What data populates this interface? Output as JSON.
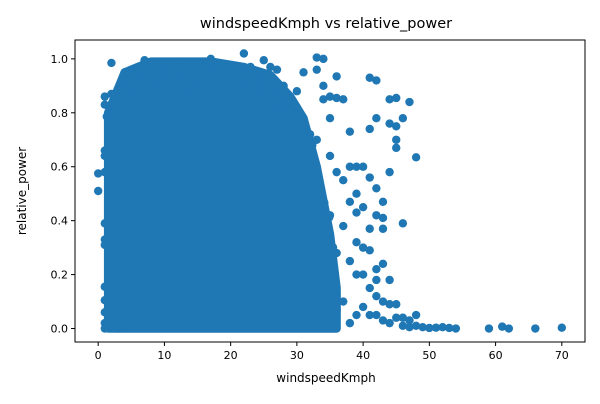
{
  "chart_data": {
    "type": "scatter",
    "title": "windspeedKmph vs relative_power",
    "xlabel": "windspeedKmph",
    "ylabel": "relative_power",
    "xlim": [
      -3.5,
      73.5
    ],
    "ylim": [
      -0.05,
      1.07
    ],
    "x_ticks": [
      0,
      10,
      20,
      30,
      40,
      50,
      60,
      70
    ],
    "y_ticks": [
      0.0,
      0.2,
      0.4,
      0.6,
      0.8,
      1.0
    ],
    "x_tick_labels": [
      "0",
      "10",
      "20",
      "30",
      "40",
      "50",
      "60",
      "70"
    ],
    "y_tick_labels": [
      "0.0",
      "0.2",
      "0.4",
      "0.6",
      "0.8",
      "1.0"
    ],
    "grid": false,
    "legend": "none",
    "marker_color": "#1f77b4",
    "points": [
      [
        0,
        0.51
      ],
      [
        0,
        0.575
      ],
      [
        1,
        0.58
      ],
      [
        1,
        0.83
      ],
      [
        1,
        0.86
      ],
      [
        1,
        0.66
      ],
      [
        1,
        0.64
      ],
      [
        1,
        0.39
      ],
      [
        1,
        0.33
      ],
      [
        1,
        0.31
      ],
      [
        1,
        0.155
      ],
      [
        1,
        0.105
      ],
      [
        1,
        0.06
      ],
      [
        1,
        0.02
      ],
      [
        1,
        0.0
      ],
      [
        2,
        0.985
      ],
      [
        2,
        0.87
      ],
      [
        2,
        0.75
      ],
      [
        2,
        0.55
      ],
      [
        2,
        0.49
      ],
      [
        2,
        0.3
      ],
      [
        2,
        0.1
      ],
      [
        2,
        0.01
      ],
      [
        3,
        0.89
      ],
      [
        3,
        0.7
      ],
      [
        3,
        0.45
      ],
      [
        3,
        0.2
      ],
      [
        3,
        0.0
      ],
      [
        4,
        0.95
      ],
      [
        4,
        0.6
      ],
      [
        4,
        0.3
      ],
      [
        4,
        0.05
      ],
      [
        5,
        0.9
      ],
      [
        5,
        0.4
      ],
      [
        5,
        0.1
      ],
      [
        6,
        0.96
      ],
      [
        6,
        0.8
      ],
      [
        6,
        0.2
      ],
      [
        7,
        0.995
      ],
      [
        7,
        0.7
      ],
      [
        8,
        0.98
      ],
      [
        8,
        0.5
      ],
      [
        9,
        0.96
      ],
      [
        9,
        0.3
      ],
      [
        10,
        0.985
      ],
      [
        10,
        0.85
      ],
      [
        11,
        0.97
      ],
      [
        11,
        0.1
      ],
      [
        12,
        0.985
      ],
      [
        12,
        0.6
      ],
      [
        13,
        0.96
      ],
      [
        13,
        0.75
      ],
      [
        14,
        0.975
      ],
      [
        14,
        0.4
      ],
      [
        15,
        0.95
      ],
      [
        15,
        0.2
      ],
      [
        16,
        0.97
      ],
      [
        16,
        0.65
      ],
      [
        17,
        1.0
      ],
      [
        17,
        0.985
      ],
      [
        17,
        0.8
      ],
      [
        18,
        0.97
      ],
      [
        18,
        0.3
      ],
      [
        19,
        0.98
      ],
      [
        19,
        0.5
      ],
      [
        20,
        0.96
      ],
      [
        20,
        0.7
      ],
      [
        21,
        0.97
      ],
      [
        21,
        0.9
      ],
      [
        22,
        1.02
      ],
      [
        22,
        0.6
      ],
      [
        23,
        0.97
      ],
      [
        23,
        0.85
      ],
      [
        24,
        0.95
      ],
      [
        24,
        0.4
      ],
      [
        25,
        0.995
      ],
      [
        25,
        0.88
      ],
      [
        26,
        0.97
      ],
      [
        26,
        0.5
      ],
      [
        27,
        0.96
      ],
      [
        27,
        0.85
      ],
      [
        28,
        0.9
      ],
      [
        28,
        0.3
      ],
      [
        29,
        0.85
      ],
      [
        29,
        0.7
      ],
      [
        30,
        0.88
      ],
      [
        30,
        0.5
      ],
      [
        31,
        0.95
      ],
      [
        31,
        0.6
      ],
      [
        32,
        0.72
      ],
      [
        32,
        0.5
      ],
      [
        33,
        1.005
      ],
      [
        33,
        0.96
      ],
      [
        33,
        0.7
      ],
      [
        33,
        0.25
      ],
      [
        34,
        1.0
      ],
      [
        34,
        0.9
      ],
      [
        34,
        0.85
      ],
      [
        34,
        0.45
      ],
      [
        34,
        0.2
      ],
      [
        35,
        0.86
      ],
      [
        35,
        0.78
      ],
      [
        35,
        0.64
      ],
      [
        35,
        0.42
      ],
      [
        35,
        0.12
      ],
      [
        36,
        0.935
      ],
      [
        36,
        0.855
      ],
      [
        36,
        0.58
      ],
      [
        36,
        0.28
      ],
      [
        36,
        0.07
      ],
      [
        37,
        0.85
      ],
      [
        37,
        0.55
      ],
      [
        37,
        0.38
      ],
      [
        37,
        0.1
      ],
      [
        38,
        0.73
      ],
      [
        38,
        0.6
      ],
      [
        38,
        0.47
      ],
      [
        38,
        0.25
      ],
      [
        38,
        0.02
      ],
      [
        39,
        0.6
      ],
      [
        39,
        0.5
      ],
      [
        39,
        0.43
      ],
      [
        39,
        0.32
      ],
      [
        39,
        0.2
      ],
      [
        39,
        0.05
      ],
      [
        40,
        0.6
      ],
      [
        40,
        0.45
      ],
      [
        40,
        0.3
      ],
      [
        40,
        0.2
      ],
      [
        40,
        0.08
      ],
      [
        41,
        0.93
      ],
      [
        41,
        0.74
      ],
      [
        41,
        0.56
      ],
      [
        41,
        0.37
      ],
      [
        41,
        0.29
      ],
      [
        41,
        0.15
      ],
      [
        41,
        0.05
      ],
      [
        42,
        0.92
      ],
      [
        42,
        0.78
      ],
      [
        42,
        0.52
      ],
      [
        42,
        0.42
      ],
      [
        42,
        0.22
      ],
      [
        42,
        0.18
      ],
      [
        42,
        0.12
      ],
      [
        42,
        0.05
      ],
      [
        43,
        0.47
      ],
      [
        43,
        0.41
      ],
      [
        43,
        0.37
      ],
      [
        43,
        0.24
      ],
      [
        43,
        0.1
      ],
      [
        43,
        0.03
      ],
      [
        44,
        0.85
      ],
      [
        44,
        0.76
      ],
      [
        44,
        0.58
      ],
      [
        44,
        0.18
      ],
      [
        44,
        0.09
      ],
      [
        44,
        0.02
      ],
      [
        45,
        0.855
      ],
      [
        45,
        0.75
      ],
      [
        45,
        0.7
      ],
      [
        45,
        0.67
      ],
      [
        45,
        0.09
      ],
      [
        45,
        0.04
      ],
      [
        46,
        0.78
      ],
      [
        46,
        0.39
      ],
      [
        46,
        0.04
      ],
      [
        46,
        0.01
      ],
      [
        47,
        0.84
      ],
      [
        47,
        0.03
      ],
      [
        47,
        0.005
      ],
      [
        48,
        0.635
      ],
      [
        48,
        0.05
      ],
      [
        48,
        0.01
      ],
      [
        49,
        0.005
      ],
      [
        50,
        0.002
      ],
      [
        51,
        0.003
      ],
      [
        52,
        0.005
      ],
      [
        53,
        0.002
      ],
      [
        54,
        0.0
      ],
      [
        59,
        0.0
      ],
      [
        61,
        0.007
      ],
      [
        62,
        0.0
      ],
      [
        66,
        0.0
      ],
      [
        70,
        0.003
      ]
    ],
    "dense_region": {
      "x_range": [
        1.5,
        36
      ],
      "y_upper_profile": [
        [
          1.5,
          0.8
        ],
        [
          4,
          0.95
        ],
        [
          8,
          0.99
        ],
        [
          12,
          0.99
        ],
        [
          17,
          0.99
        ],
        [
          22,
          0.97
        ],
        [
          26,
          0.94
        ],
        [
          29,
          0.86
        ],
        [
          31,
          0.78
        ],
        [
          33,
          0.6
        ],
        [
          35,
          0.35
        ],
        [
          36,
          0.15
        ]
      ]
    }
  }
}
